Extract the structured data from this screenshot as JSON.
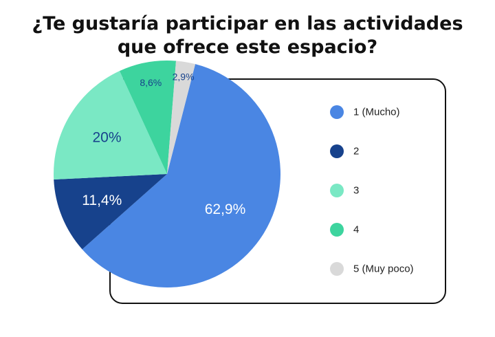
{
  "chart_data": {
    "type": "pie",
    "title_lines": [
      "¿Te gustaría participar en las actividades",
      "que ofrece este espacio?"
    ],
    "labels": [
      "1 (Mucho)",
      "2",
      "3",
      "4",
      "5 (Muy poco)"
    ],
    "values": [
      62.9,
      11.4,
      20,
      8.6,
      2.9
    ],
    "value_labels": [
      "62,9%",
      "11,4%",
      "20%",
      "8,6%",
      "2,9%"
    ],
    "colors": [
      "#4a86e3",
      "#17428c",
      "#7ae8c4",
      "#3dd49e",
      "#d9d9d9"
    ],
    "label_colors": [
      "#ffffff",
      "#ffffff",
      "#17428c",
      "#17428c",
      "#17428c"
    ],
    "legend_position": "right"
  }
}
